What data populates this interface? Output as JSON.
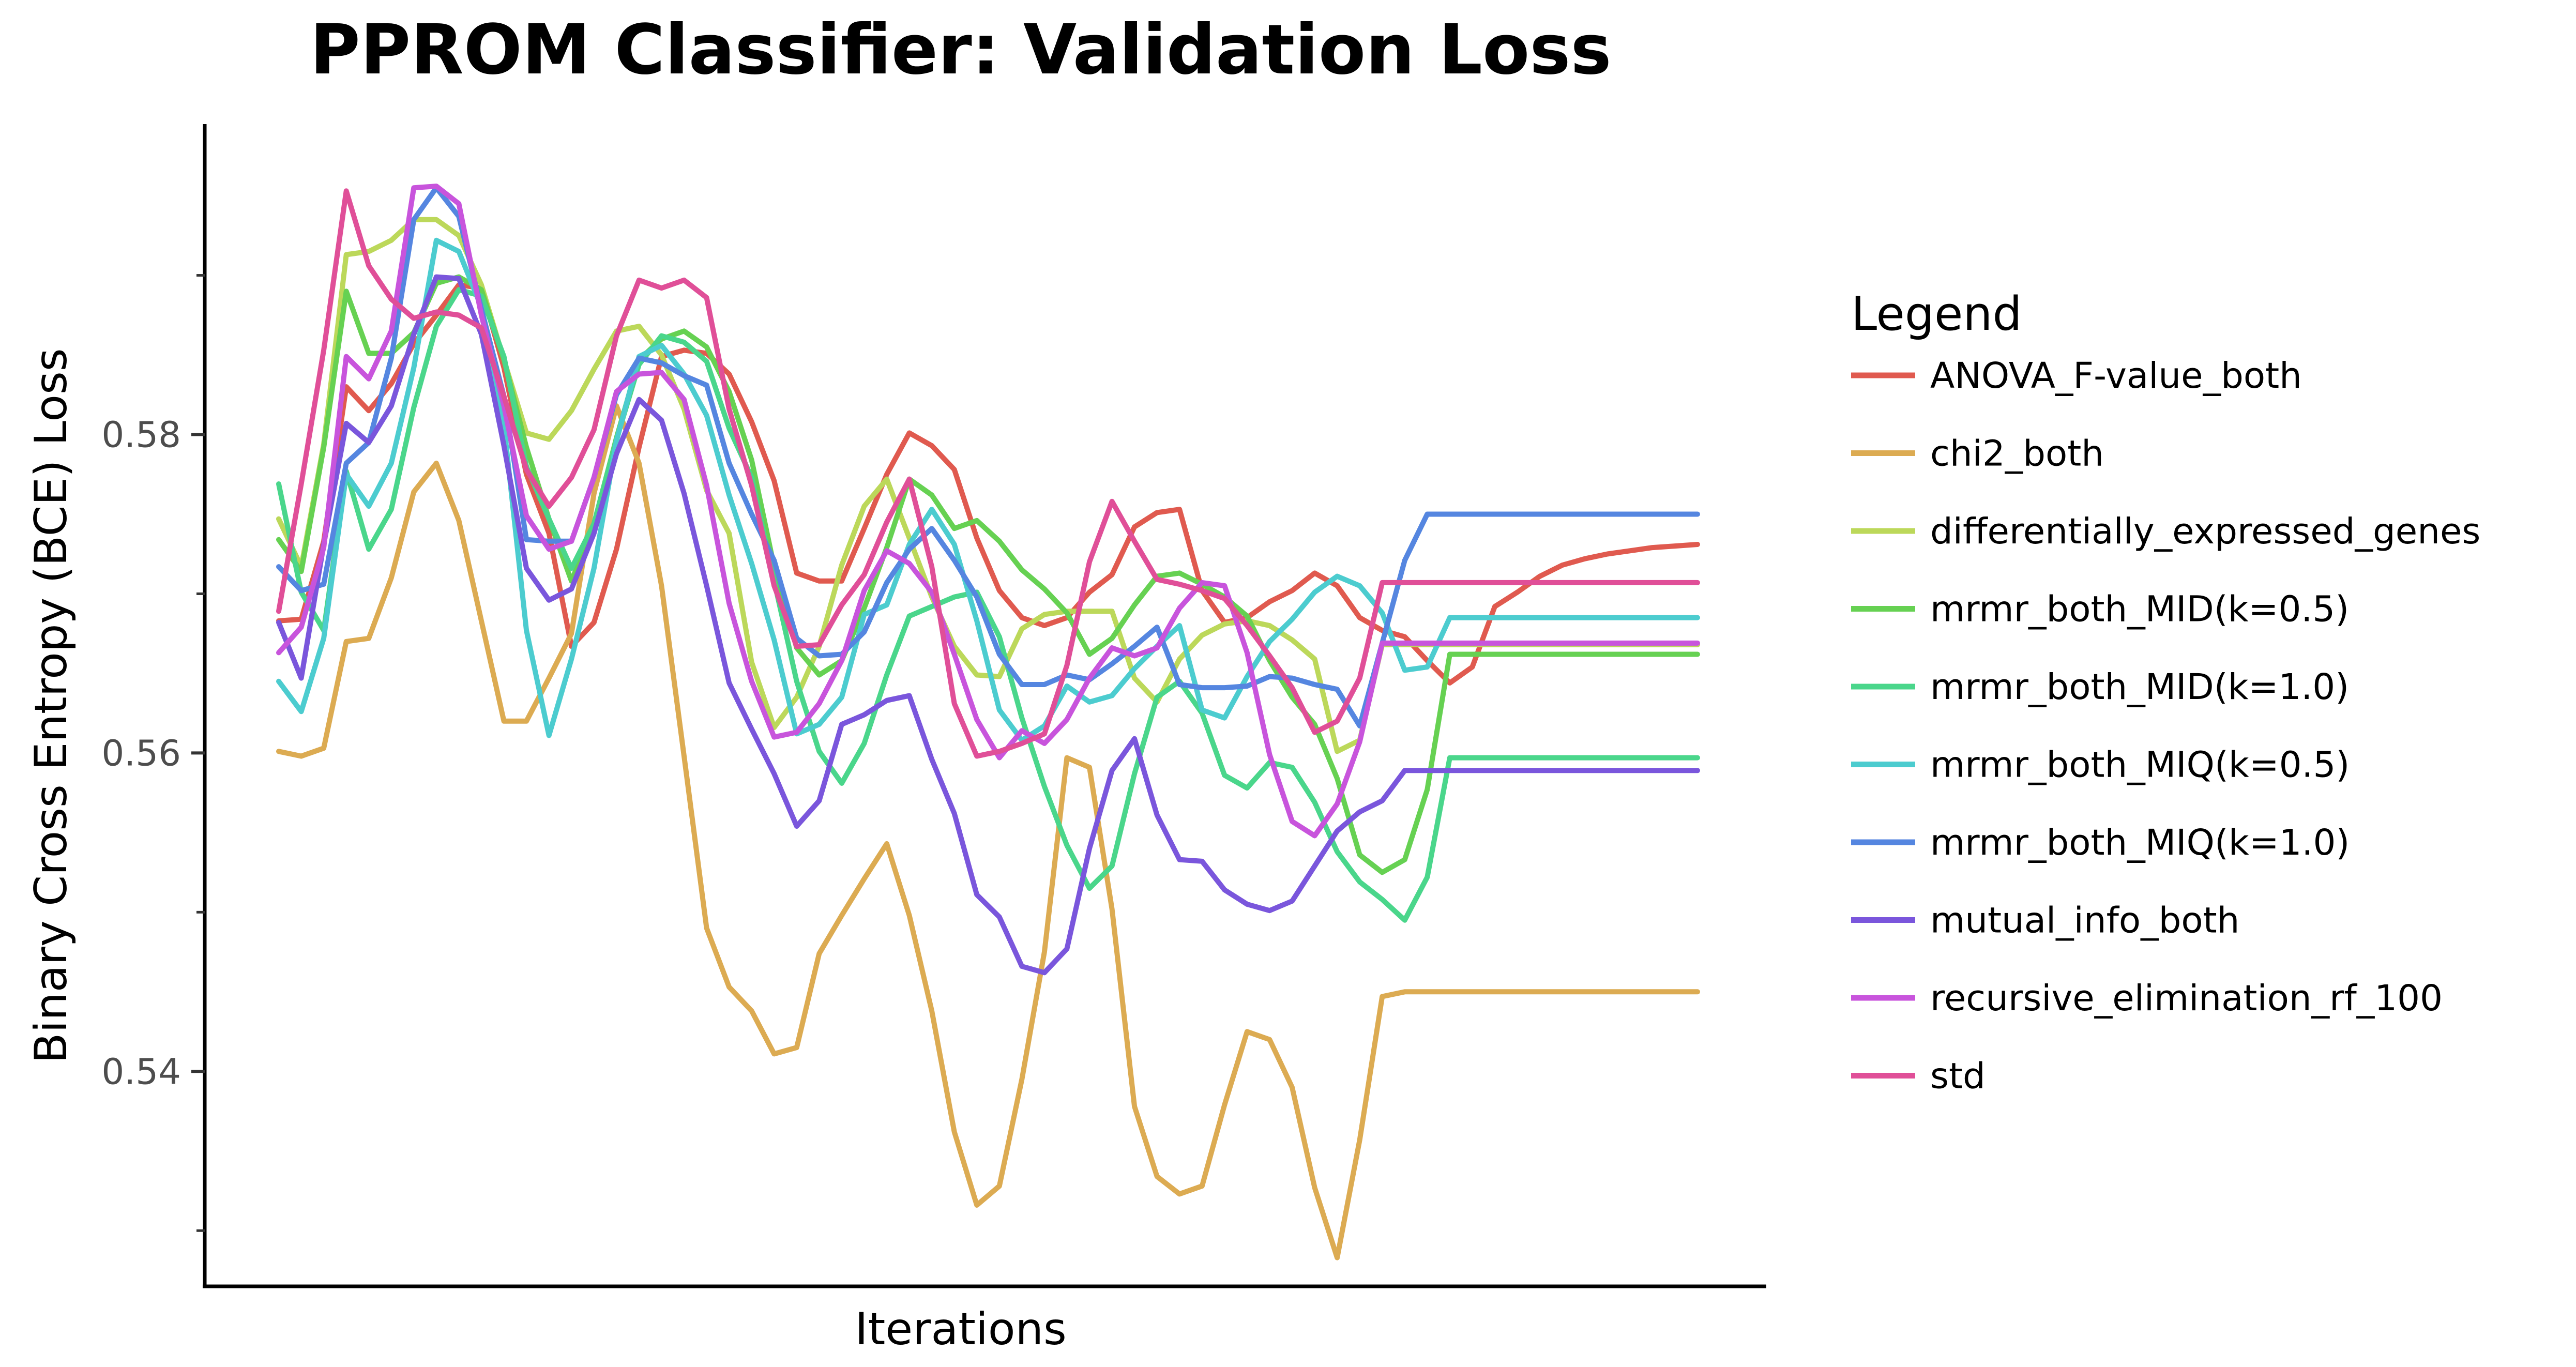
{
  "chart_data": {
    "type": "line",
    "title": "PPROM Classifier: Validation Loss",
    "xlabel": "Iterations",
    "ylabel": "Binary Cross Entropy (BCE) Loss",
    "ylim": [
      0.5265,
      0.5995
    ],
    "yticks": [
      0.54,
      0.56,
      0.58
    ],
    "ytick_labels": [
      "0.54",
      "0.56",
      "0.58"
    ],
    "y_minor_ticks": [
      0.53,
      0.55,
      0.57,
      0.59
    ],
    "x_tick_labels": "none",
    "grid": false,
    "legend": {
      "title": "Legend",
      "placement": "right"
    },
    "x": [
      1,
      2,
      3,
      4,
      5,
      6,
      7,
      8,
      9,
      10,
      11,
      12,
      13,
      14,
      15,
      16,
      17,
      18,
      19,
      20,
      21,
      22,
      23,
      24,
      25,
      26,
      27,
      28,
      29,
      30,
      31,
      32,
      33,
      34,
      35,
      36,
      37,
      38,
      39,
      40,
      41,
      42,
      43,
      44,
      45,
      46,
      47,
      48,
      49,
      50,
      51,
      52,
      53,
      54,
      55,
      56,
      57,
      58,
      59,
      60,
      61,
      62,
      63,
      64
    ],
    "series": [
      {
        "name": "ANOVA_F-value_both",
        "color": "#e05a4f",
        "values": [
          0.5683,
          0.5684,
          0.5733,
          0.583,
          0.5815,
          0.5832,
          0.5857,
          0.5875,
          0.5894,
          0.5892,
          0.5842,
          0.5775,
          0.5738,
          0.5667,
          0.5682,
          0.5728,
          0.5792,
          0.5849,
          0.5853,
          0.5851,
          0.5838,
          0.5808,
          0.5771,
          0.5713,
          0.5708,
          0.5708,
          0.5741,
          0.5775,
          0.5801,
          0.5793,
          0.5778,
          0.5735,
          0.5702,
          0.5685,
          0.568,
          0.5685,
          0.5701,
          0.5712,
          0.5742,
          0.5751,
          0.5753,
          0.5702,
          0.5682,
          0.5685,
          0.5695,
          0.5702,
          0.5713,
          0.5705,
          0.5685,
          0.5677,
          0.5673,
          0.5658,
          0.5644,
          0.5654,
          0.5692,
          0.5701,
          0.5711,
          0.5718,
          0.5722,
          0.5725,
          0.5727,
          0.5729,
          0.573,
          0.5731
        ]
      },
      {
        "name": "chi2_both",
        "color": "#dcab52",
        "values": [
          0.5601,
          0.5598,
          0.5603,
          0.567,
          0.5672,
          0.571,
          0.5764,
          0.5782,
          0.5746,
          0.5683,
          0.562,
          0.562,
          0.5647,
          0.5675,
          0.5763,
          0.5818,
          0.5782,
          0.5705,
          0.5598,
          0.549,
          0.5453,
          0.5438,
          0.5411,
          0.5415,
          0.5474,
          0.5498,
          0.5521,
          0.5543,
          0.5498,
          0.5438,
          0.5362,
          0.5316,
          0.5328,
          0.5395,
          0.5475,
          0.5597,
          0.5591,
          0.5502,
          0.5378,
          0.5334,
          0.5323,
          0.5328,
          0.5379,
          0.5425,
          0.542,
          0.539,
          0.5327,
          0.5283,
          0.5357,
          0.5447,
          0.545,
          0.545,
          0.545,
          0.545,
          0.545,
          0.545,
          0.545,
          0.545,
          0.545,
          0.545,
          0.545,
          0.545,
          0.545,
          0.545
        ]
      },
      {
        "name": "differentially_expressed_genes",
        "color": "#bcd85a",
        "values": [
          0.5747,
          0.5717,
          0.5794,
          0.5913,
          0.5915,
          0.5922,
          0.5935,
          0.5935,
          0.5925,
          0.5894,
          0.5847,
          0.5801,
          0.5797,
          0.5815,
          0.5841,
          0.5865,
          0.5868,
          0.585,
          0.5816,
          0.5765,
          0.5738,
          0.5657,
          0.5616,
          0.5635,
          0.5667,
          0.5718,
          0.5755,
          0.5772,
          0.5735,
          0.5698,
          0.5667,
          0.5649,
          0.5648,
          0.5678,
          0.5687,
          0.5689,
          0.5689,
          0.5689,
          0.5647,
          0.5632,
          0.5659,
          0.5674,
          0.5681,
          0.5683,
          0.568,
          0.5671,
          0.5659,
          0.5601,
          0.5608,
          0.5668,
          0.5668,
          0.5668,
          0.5668,
          0.5668,
          0.5668,
          0.5668,
          0.5668,
          0.5668,
          0.5668,
          0.5668,
          0.5668,
          0.5668,
          0.5668,
          0.5668
        ]
      },
      {
        "name": "mrmr_both_MID(k=0.5)",
        "color": "#66d152",
        "values": [
          0.5734,
          0.5714,
          0.5792,
          0.589,
          0.5851,
          0.5851,
          0.5864,
          0.5895,
          0.5899,
          0.5891,
          0.5847,
          0.5792,
          0.5747,
          0.5708,
          0.5744,
          0.5798,
          0.5847,
          0.586,
          0.5865,
          0.5855,
          0.5827,
          0.5784,
          0.5717,
          0.5666,
          0.5649,
          0.5658,
          0.5691,
          0.5729,
          0.5772,
          0.5762,
          0.5741,
          0.5746,
          0.5733,
          0.5715,
          0.5703,
          0.5688,
          0.5662,
          0.5672,
          0.5693,
          0.5711,
          0.5713,
          0.5706,
          0.5698,
          0.5686,
          0.5658,
          0.5635,
          0.5618,
          0.5584,
          0.5536,
          0.5525,
          0.5533,
          0.5577,
          0.5662,
          0.5662,
          0.5662,
          0.5662,
          0.5662,
          0.5662,
          0.5662,
          0.5662,
          0.5662,
          0.5662,
          0.5662,
          0.5662
        ]
      },
      {
        "name": "mrmr_both_MID(k=1.0)",
        "color": "#4ad68b",
        "values": [
          0.5769,
          0.5701,
          0.5677,
          0.5777,
          0.5728,
          0.5753,
          0.5817,
          0.5868,
          0.5891,
          0.5887,
          0.5849,
          0.578,
          0.5747,
          0.5716,
          0.5744,
          0.5797,
          0.5844,
          0.5862,
          0.5858,
          0.5846,
          0.5804,
          0.5773,
          0.5708,
          0.5645,
          0.5601,
          0.5581,
          0.5606,
          0.5649,
          0.5686,
          0.5692,
          0.5698,
          0.5701,
          0.5673,
          0.5622,
          0.5579,
          0.5542,
          0.5515,
          0.5529,
          0.5587,
          0.5635,
          0.5645,
          0.5625,
          0.5586,
          0.5578,
          0.5594,
          0.5591,
          0.5569,
          0.5538,
          0.5519,
          0.5508,
          0.5495,
          0.5522,
          0.5597,
          0.5597,
          0.5597,
          0.5597,
          0.5597,
          0.5597,
          0.5597,
          0.5597,
          0.5597,
          0.5597,
          0.5597,
          0.5597
        ]
      },
      {
        "name": "mrmr_both_MIQ(k=0.5)",
        "color": "#4ccccf",
        "values": [
          0.5645,
          0.5626,
          0.5672,
          0.5775,
          0.5755,
          0.5782,
          0.5842,
          0.5922,
          0.5915,
          0.588,
          0.5806,
          0.5677,
          0.5611,
          0.5659,
          0.5716,
          0.5796,
          0.5849,
          0.5856,
          0.5838,
          0.5812,
          0.5762,
          0.5719,
          0.5671,
          0.5612,
          0.5618,
          0.5635,
          0.5687,
          0.5693,
          0.5731,
          0.5753,
          0.5731,
          0.5683,
          0.5627,
          0.5608,
          0.5617,
          0.5642,
          0.5632,
          0.5636,
          0.5653,
          0.5667,
          0.568,
          0.5627,
          0.5622,
          0.5648,
          0.567,
          0.5684,
          0.5701,
          0.5711,
          0.5705,
          0.5688,
          0.5652,
          0.5654,
          0.5685,
          0.5685,
          0.5685,
          0.5685,
          0.5685,
          0.5685,
          0.5685,
          0.5685,
          0.5685,
          0.5685,
          0.5685,
          0.5685
        ]
      },
      {
        "name": "mrmr_both_MIQ(k=1.0)",
        "color": "#5586e0",
        "values": [
          0.5717,
          0.5702,
          0.5706,
          0.5782,
          0.5795,
          0.5848,
          0.5935,
          0.5955,
          0.5937,
          0.5879,
          0.5824,
          0.5734,
          0.5733,
          0.5733,
          0.5773,
          0.5825,
          0.5848,
          0.5845,
          0.5837,
          0.5831,
          0.5782,
          0.575,
          0.5721,
          0.5672,
          0.5661,
          0.5662,
          0.5676,
          0.5707,
          0.5728,
          0.5741,
          0.5721,
          0.5698,
          0.5662,
          0.5643,
          0.5643,
          0.5649,
          0.5646,
          0.5656,
          0.5667,
          0.5679,
          0.5643,
          0.5641,
          0.5641,
          0.5642,
          0.5648,
          0.5647,
          0.5643,
          0.564,
          0.5617,
          0.5669,
          0.5721,
          0.575,
          0.575,
          0.575,
          0.575,
          0.575,
          0.575,
          0.575,
          0.575,
          0.575,
          0.575,
          0.575,
          0.575,
          0.575
        ]
      },
      {
        "name": "mutual_info_both",
        "color": "#7a56dc",
        "values": [
          0.5682,
          0.5647,
          0.5731,
          0.5807,
          0.5795,
          0.5818,
          0.5863,
          0.5899,
          0.5898,
          0.5863,
          0.5793,
          0.5716,
          0.5696,
          0.5703,
          0.5738,
          0.5788,
          0.5822,
          0.5809,
          0.5763,
          0.5705,
          0.5644,
          0.5615,
          0.5587,
          0.5554,
          0.557,
          0.5618,
          0.5624,
          0.5633,
          0.5636,
          0.5596,
          0.5562,
          0.5511,
          0.5497,
          0.5466,
          0.5462,
          0.5477,
          0.554,
          0.5589,
          0.5609,
          0.5561,
          0.5533,
          0.5532,
          0.5514,
          0.5505,
          0.5501,
          0.5507,
          0.5529,
          0.5551,
          0.5563,
          0.557,
          0.5589,
          0.5589,
          0.5589,
          0.5589,
          0.5589,
          0.5589,
          0.5589,
          0.5589,
          0.5589,
          0.5589,
          0.5589,
          0.5589,
          0.5589,
          0.5589
        ]
      },
      {
        "name": "recursive_elimination_rf_100",
        "color": "#c854dc",
        "values": [
          0.5663,
          0.5679,
          0.5729,
          0.5849,
          0.5835,
          0.5865,
          0.5955,
          0.5956,
          0.5945,
          0.5875,
          0.5818,
          0.5749,
          0.5728,
          0.5733,
          0.5773,
          0.5827,
          0.5838,
          0.5839,
          0.5822,
          0.5768,
          0.5694,
          0.5645,
          0.561,
          0.5613,
          0.5631,
          0.5658,
          0.5702,
          0.5727,
          0.5719,
          0.5701,
          0.5662,
          0.5621,
          0.5597,
          0.5614,
          0.5606,
          0.5621,
          0.5647,
          0.5666,
          0.5661,
          0.5666,
          0.5691,
          0.5707,
          0.5705,
          0.5663,
          0.5599,
          0.5557,
          0.5548,
          0.5568,
          0.5607,
          0.5669,
          0.5669,
          0.5669,
          0.5669,
          0.5669,
          0.5669,
          0.5669,
          0.5669,
          0.5669,
          0.5669,
          0.5669,
          0.5669,
          0.5669,
          0.5669,
          0.5669
        ]
      },
      {
        "name": "std",
        "color": "#e04f98",
        "values": [
          0.5689,
          0.5769,
          0.5853,
          0.5953,
          0.5906,
          0.5885,
          0.5873,
          0.5877,
          0.5875,
          0.5867,
          0.5824,
          0.5778,
          0.5755,
          0.5773,
          0.5803,
          0.5862,
          0.5897,
          0.5892,
          0.5897,
          0.5886,
          0.5816,
          0.5768,
          0.5705,
          0.5667,
          0.5668,
          0.5693,
          0.5712,
          0.5745,
          0.5772,
          0.5717,
          0.5631,
          0.5598,
          0.5601,
          0.5606,
          0.5612,
          0.5655,
          0.572,
          0.5758,
          0.5733,
          0.5709,
          0.5706,
          0.5702,
          0.5697,
          0.568,
          0.5661,
          0.5641,
          0.5613,
          0.562,
          0.5647,
          0.5707,
          0.5707,
          0.5707,
          0.5707,
          0.5707,
          0.5707,
          0.5707,
          0.5707,
          0.5707,
          0.5707,
          0.5707,
          0.5707,
          0.5707,
          0.5707,
          0.5707
        ]
      }
    ]
  }
}
